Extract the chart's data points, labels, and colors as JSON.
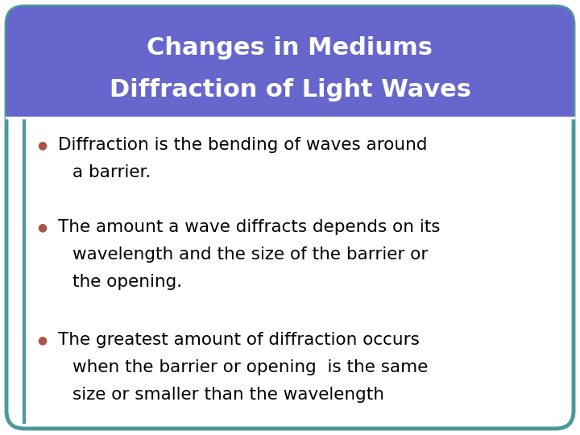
{
  "title_line1": "Changes in Mediums",
  "title_line2": "Diffraction of Light Waves",
  "title_bg_color": "#6666cc",
  "title_text_color": "#ffffff",
  "body_bg_color": "#ffffff",
  "border_color": "#4d9999",
  "bullet_color": "#aa5544",
  "text_color": "#000000",
  "separator_color": "#ffffff",
  "bullets": [
    {
      "lines": [
        "Diffraction is the bending of waves around",
        "a barrier."
      ]
    },
    {
      "lines": [
        "The amount a wave diffracts depends on its",
        "wavelength and the size of the barrier or",
        "the opening."
      ]
    },
    {
      "lines": [
        "The greatest amount of diffraction occurs",
        "when the barrier or opening  is the same",
        "size or smaller than the wavelength"
      ]
    }
  ],
  "fig_width": 7.2,
  "fig_height": 5.4,
  "dpi": 100
}
